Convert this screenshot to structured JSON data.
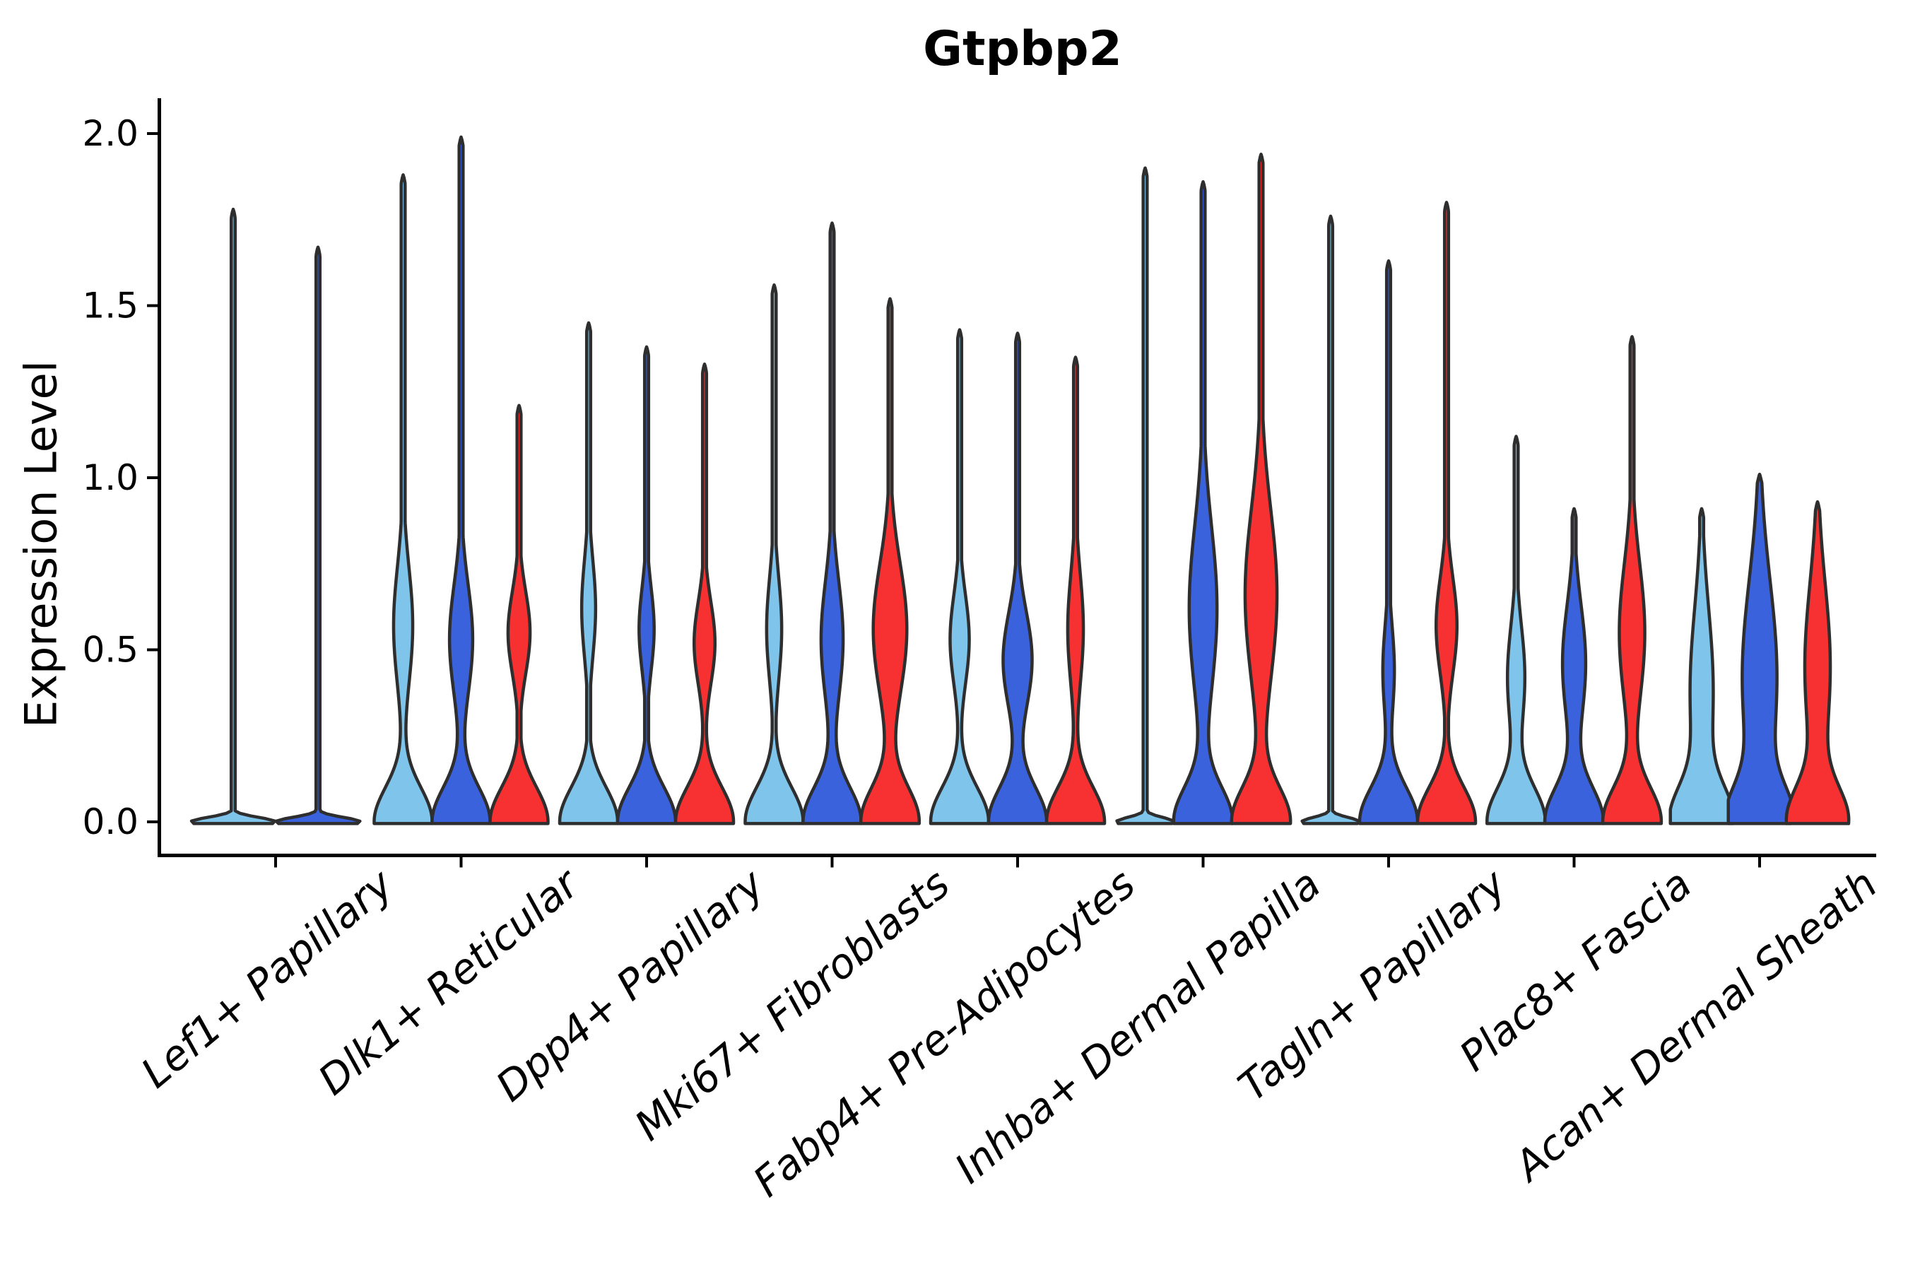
{
  "title": "Gtpbp2",
  "ylabel": "Expression Level",
  "yticks": [
    "0.0",
    "0.5",
    "1.0",
    "1.5",
    "2.0"
  ],
  "colors": {
    "series": [
      "#7EC4EB",
      "#3B62DD",
      "#F73131"
    ],
    "outline": "#2E2E2E",
    "axis": "#000000",
    "text": "#000000",
    "background": "#FFFFFF"
  },
  "chart_data": {
    "type": "violin",
    "title": "Gtpbp2",
    "xlabel": "",
    "ylabel": "Expression Level",
    "ylim": [
      -0.05,
      2.1
    ],
    "yticks": [
      0.0,
      0.5,
      1.0,
      1.5,
      2.0
    ],
    "grid": false,
    "legend": "none",
    "series_colors": [
      "#7EC4EB",
      "#3B62DD",
      "#F73131"
    ],
    "categories": [
      "Lef1+ Papillary",
      "Dlk1+ Reticular",
      "Dpp4+ Papillary",
      "Mki67+ Fibroblasts",
      "Fabp4+ Pre-Adipocytes",
      "Inhba+ Dermal Papilla",
      "Tagln+ Papillary",
      "Plac8+ Fascia",
      "Acan+ Dermal Sheath"
    ],
    "groups": [
      {
        "label": "Lef1+ Papillary",
        "violins": [
          {
            "c": 0,
            "tip": 1.78,
            "flat": true
          },
          {
            "c": 1,
            "tip": 1.67,
            "flat": true
          }
        ]
      },
      {
        "label": "Dlk1+ Reticular",
        "violins": [
          {
            "c": 0,
            "tip": 1.88,
            "bulge": {
              "w": 0.33,
              "mu": 0.57,
              "s": 0.17
            }
          },
          {
            "c": 1,
            "tip": 1.99,
            "bulge": {
              "w": 0.4,
              "mu": 0.53,
              "s": 0.16
            }
          },
          {
            "c": 2,
            "tip": 1.21,
            "bulge": {
              "w": 0.38,
              "mu": 0.55,
              "s": 0.12
            }
          }
        ]
      },
      {
        "label": "Dpp4+ Papillary",
        "violins": [
          {
            "c": 0,
            "tip": 1.45,
            "bulge": {
              "w": 0.24,
              "mu": 0.62,
              "s": 0.14
            }
          },
          {
            "c": 1,
            "tip": 1.38,
            "bulge": {
              "w": 0.26,
              "mu": 0.56,
              "s": 0.12
            }
          },
          {
            "c": 2,
            "tip": 1.33,
            "bulge": {
              "w": 0.36,
              "mu": 0.52,
              "s": 0.12
            }
          }
        ]
      },
      {
        "label": "Mki67+ Fibroblasts",
        "violins": [
          {
            "c": 0,
            "tip": 1.56,
            "bulge": {
              "w": 0.26,
              "mu": 0.56,
              "s": 0.15
            }
          },
          {
            "c": 1,
            "tip": 1.74,
            "bulge": {
              "w": 0.38,
              "mu": 0.53,
              "s": 0.17
            }
          },
          {
            "c": 2,
            "tip": 1.52,
            "bulge": {
              "w": 0.58,
              "mu": 0.56,
              "s": 0.19
            }
          }
        ]
      },
      {
        "label": "Fabp4+ Pre-Adipocytes",
        "violins": [
          {
            "c": 0,
            "tip": 1.43,
            "bulge": {
              "w": 0.33,
              "mu": 0.53,
              "s": 0.13
            }
          },
          {
            "c": 1,
            "tip": 1.42,
            "bulge": {
              "w": 0.5,
              "mu": 0.47,
              "s": 0.14
            }
          },
          {
            "c": 2,
            "tip": 1.35,
            "bulge": {
              "w": 0.27,
              "mu": 0.56,
              "s": 0.16
            }
          }
        ]
      },
      {
        "label": "Inhba+ Dermal Papilla",
        "violins": [
          {
            "c": 0,
            "tip": 1.9,
            "flat": true
          },
          {
            "c": 1,
            "tip": 1.86,
            "bulge": {
              "w": 0.48,
              "mu": 0.62,
              "s": 0.24
            }
          },
          {
            "c": 2,
            "tip": 1.94,
            "bulge": {
              "w": 0.55,
              "mu": 0.66,
              "s": 0.25
            }
          }
        ]
      },
      {
        "label": "Tagln+ Papillary",
        "violins": [
          {
            "c": 0,
            "tip": 1.76,
            "flat": true
          },
          {
            "c": 1,
            "tip": 1.63,
            "bulge": {
              "w": 0.2,
              "mu": 0.44,
              "s": 0.13
            }
          },
          {
            "c": 2,
            "tip": 1.8,
            "bulge": {
              "w": 0.36,
              "mu": 0.57,
              "s": 0.14
            }
          }
        ]
      },
      {
        "label": "Plac8+ Fascia",
        "violins": [
          {
            "c": 0,
            "tip": 1.12,
            "bulge": {
              "w": 0.3,
              "mu": 0.42,
              "s": 0.15
            }
          },
          {
            "c": 1,
            "tip": 0.91,
            "bulge": {
              "w": 0.4,
              "mu": 0.46,
              "s": 0.17
            }
          },
          {
            "c": 2,
            "tip": 1.41,
            "bulge": {
              "w": 0.44,
              "mu": 0.55,
              "s": 0.2
            }
          }
        ]
      },
      {
        "label": "Acan+ Dermal Sheath",
        "violins": [
          {
            "c": 0,
            "tip": 0.91,
            "bulge": {
              "w": 0.4,
              "mu": 0.38,
              "s": 0.24
            }
          },
          {
            "c": 1,
            "tip": 1.01,
            "bulge": {
              "w": 0.6,
              "mu": 0.42,
              "s": 0.28
            }
          },
          {
            "c": 2,
            "tip": 0.93,
            "bulge": {
              "w": 0.44,
              "mu": 0.45,
              "s": 0.24
            }
          }
        ]
      }
    ]
  }
}
